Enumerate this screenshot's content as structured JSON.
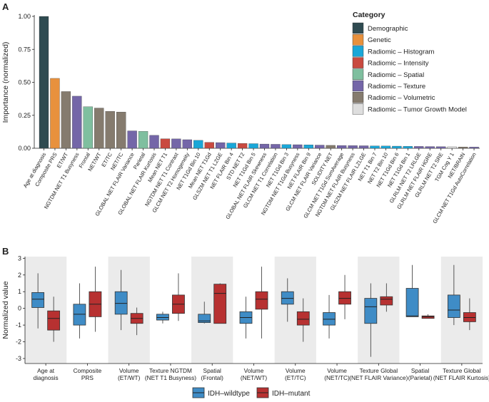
{
  "panel_labels": {
    "a": "A",
    "b": "B"
  },
  "colors": {
    "demographic": "#2f4b51",
    "genetic": "#e8913d",
    "histogram": "#1aa7d8",
    "intensity": "#c94a40",
    "spatial": "#7fbf9f",
    "texture": "#7466a8",
    "volumetric": "#857b6e",
    "growth": "#dedede",
    "wildtype": "#3f8cc6",
    "mutant": "#b73131",
    "band": "#ebebeb"
  },
  "chart_data": [
    {
      "type": "bar",
      "ylabel": "Importance (normalized)",
      "ylim": [
        0,
        1.0
      ],
      "yticks": [
        "0.00",
        "0.25",
        "0.50",
        "0.75",
        "1.00"
      ],
      "legend": {
        "title": "Category",
        "position": "top-right",
        "items": [
          {
            "label": "Demographic",
            "color_key": "demographic"
          },
          {
            "label": "Genetic",
            "color_key": "genetic"
          },
          {
            "label": "Radiomic – Histogram",
            "color_key": "histogram"
          },
          {
            "label": "Radiomic – Intensity",
            "color_key": "intensity"
          },
          {
            "label": "Radiomic – Spatial",
            "color_key": "spatial"
          },
          {
            "label": "Radiomic – Texture",
            "color_key": "texture"
          },
          {
            "label": "Radiomic – Volumetric",
            "color_key": "volumetric"
          },
          {
            "label": "Radiomic – Tumor Growth Model",
            "color_key": "growth"
          }
        ]
      },
      "bars": [
        {
          "label": "Age at diagnosis",
          "value": 1.0,
          "cat": "demographic"
        },
        {
          "label": "Composite PRS",
          "value": 0.53,
          "cat": "genetic"
        },
        {
          "label": "ET/WT",
          "value": 0.43,
          "cat": "volumetric"
        },
        {
          "label": "NGTDM NET T1 Busyness",
          "value": 0.395,
          "cat": "texture"
        },
        {
          "label": "Frontal",
          "value": 0.315,
          "cat": "spatial"
        },
        {
          "label": "NET/WT",
          "value": 0.305,
          "cat": "volumetric"
        },
        {
          "label": "ET/TC",
          "value": 0.28,
          "cat": "volumetric"
        },
        {
          "label": "NET/TC",
          "value": 0.275,
          "cat": "volumetric"
        },
        {
          "label": "GLOBAL NET FLAIR Variance",
          "value": 0.132,
          "cat": "texture"
        },
        {
          "label": "Parietal",
          "value": 0.128,
          "cat": "spatial"
        },
        {
          "label": "GLOBAL NET FLAIR Kurtosis",
          "value": 0.098,
          "cat": "texture"
        },
        {
          "label": "Mean NET T1",
          "value": 0.072,
          "cat": "intensity"
        },
        {
          "label": "NGTDM NET T1 Contrast",
          "value": 0.071,
          "cat": "texture"
        },
        {
          "label": "GLCM NET T2 Homogeneity",
          "value": 0.065,
          "cat": "texture"
        },
        {
          "label": "NET T1Gd Bin 10",
          "value": 0.06,
          "cat": "histogram"
        },
        {
          "label": "Mean NET T1Gd",
          "value": 0.045,
          "cat": "intensity"
        },
        {
          "label": "GLSZM NET T1 LZGE",
          "value": 0.043,
          "cat": "texture"
        },
        {
          "label": "NET FLAIR Bin 4",
          "value": 0.04,
          "cat": "histogram"
        },
        {
          "label": "STD NET T2",
          "value": 0.037,
          "cat": "intensity"
        },
        {
          "label": "NET T1Gd Bin 5",
          "value": 0.035,
          "cat": "histogram"
        },
        {
          "label": "GLOBAL NET FLAIR Skewness",
          "value": 0.032,
          "cat": "texture"
        },
        {
          "label": "GLCM NET T1 Correlation",
          "value": 0.03,
          "cat": "texture"
        },
        {
          "label": "NET T1Gd Bin 3",
          "value": 0.028,
          "cat": "histogram"
        },
        {
          "label": "NGTDM NET T1Gd Busyness",
          "value": 0.027,
          "cat": "texture"
        },
        {
          "label": "NET FLAIR Bin 9",
          "value": 0.026,
          "cat": "histogram"
        },
        {
          "label": "GLCM NET FLAIR Variance",
          "value": 0.024,
          "cat": "texture"
        },
        {
          "label": "SOLIDITY NET",
          "value": 0.022,
          "cat": "volumetric"
        },
        {
          "label": "GLCM NET T1Gd SumAverage",
          "value": 0.021,
          "cat": "texture"
        },
        {
          "label": "NGTDM NET FLAIR Busyness",
          "value": 0.02,
          "cat": "texture"
        },
        {
          "label": "GLSZM NET FLAIR LZLGE",
          "value": 0.019,
          "cat": "texture"
        },
        {
          "label": "NET T1 Bin 7",
          "value": 0.018,
          "cat": "histogram"
        },
        {
          "label": "NET T2 Bin 10",
          "value": 0.017,
          "cat": "histogram"
        },
        {
          "label": "NET T1Gd Bin 6",
          "value": 0.016,
          "cat": "histogram"
        },
        {
          "label": "NET T1Gd Bin 1",
          "value": 0.015,
          "cat": "histogram"
        },
        {
          "label": "GLRLM NET T2 LRLGE",
          "value": 0.014,
          "cat": "texture"
        },
        {
          "label": "GLRLM NET FLAIR HGRE",
          "value": 0.013,
          "cat": "texture"
        },
        {
          "label": "GLRLM NET T2 SRE",
          "value": 0.012,
          "cat": "texture"
        },
        {
          "label": "TGM Cog Y 1",
          "value": 0.011,
          "cat": "growth"
        },
        {
          "label": "NET/BRAIN",
          "value": 0.01,
          "cat": "volumetric"
        },
        {
          "label": "GLCM NET T1Gd AutoCorrelation",
          "value": 0.009,
          "cat": "texture"
        }
      ]
    },
    {
      "type": "box",
      "ylabel": "Normalized value",
      "ylim": [
        -3.3,
        3.1
      ],
      "yticks": [
        -3,
        -2,
        -1,
        0,
        1,
        2,
        3
      ],
      "legend": {
        "position": "bottom",
        "items": [
          {
            "label": "IDH–wildtype",
            "color_key": "wildtype"
          },
          {
            "label": "IDH–mutant",
            "color_key": "mutant"
          }
        ]
      },
      "groups": [
        {
          "label1": "Age at",
          "label2": "diagnosis",
          "wt": {
            "min": -1.2,
            "q1": 0.05,
            "med": 0.55,
            "q3": 0.95,
            "max": 2.1
          },
          "mu": {
            "min": -2.0,
            "q1": -1.3,
            "med": -0.6,
            "q3": -0.15,
            "max": 0.7
          }
        },
        {
          "label1": "Composite",
          "label2": "PRS",
          "wt": {
            "min": -1.8,
            "q1": -1.0,
            "med": -0.35,
            "q3": 0.25,
            "max": 1.5
          },
          "mu": {
            "min": -1.4,
            "q1": -0.5,
            "med": 0.25,
            "q3": 1.0,
            "max": 2.5
          }
        },
        {
          "label1": "Volume",
          "label2": "(ET/WT)",
          "wt": {
            "min": -1.3,
            "q1": -0.35,
            "med": 0.3,
            "q3": 1.0,
            "max": 2.3
          },
          "mu": {
            "min": -1.6,
            "q1": -0.9,
            "med": -0.6,
            "q3": -0.3,
            "max": 0.05
          }
        },
        {
          "label1": "Texture NGTDM",
          "label2": "(NET T1 Busyness)",
          "wt": {
            "min": -0.9,
            "q1": -0.7,
            "med": -0.55,
            "q3": -0.35,
            "max": -0.2
          },
          "mu": {
            "min": -0.75,
            "q1": -0.3,
            "med": 0.25,
            "q3": 0.8,
            "max": 2.1
          }
        },
        {
          "label1": "Spatial",
          "label2": "(Frontal)",
          "wt": {
            "min": -0.9,
            "q1": -0.85,
            "med": -0.75,
            "q3": -0.35,
            "max": 0.4
          },
          "mu": {
            "min": -0.9,
            "q1": -0.9,
            "med": 0.9,
            "q3": 1.45,
            "max": 1.5
          }
        },
        {
          "label1": "Volume",
          "label2": "(NET/WT)",
          "wt": {
            "min": -1.8,
            "q1": -0.9,
            "med": -0.55,
            "q3": -0.2,
            "max": 0.7
          },
          "mu": {
            "min": -1.8,
            "q1": -0.05,
            "med": 0.55,
            "q3": 1.0,
            "max": 2.5
          }
        },
        {
          "label1": "Volume",
          "label2": "(ET/TC)",
          "wt": {
            "min": -0.8,
            "q1": 0.25,
            "med": 0.6,
            "q3": 1.0,
            "max": 1.8
          },
          "mu": {
            "min": -2.0,
            "q1": -1.0,
            "med": -0.65,
            "q3": -0.2,
            "max": 0.6
          }
        },
        {
          "label1": "Volume",
          "label2": "(NET/TC)",
          "wt": {
            "min": -1.8,
            "q1": -1.0,
            "med": -0.65,
            "q3": -0.25,
            "max": 0.8
          },
          "mu": {
            "min": -0.65,
            "q1": 0.25,
            "med": 0.6,
            "q3": 1.0,
            "max": 2.0
          }
        },
        {
          "label1": "Texture Global",
          "label2": "(NET FLAIR Variance)",
          "wt": {
            "min": -2.9,
            "q1": -0.9,
            "med": 0.1,
            "q3": 0.6,
            "max": 1.5
          },
          "mu": {
            "min": -0.2,
            "q1": 0.2,
            "med": 0.55,
            "q3": 0.7,
            "max": 1.5
          }
        },
        {
          "label1": "Spatial",
          "label2": "(Parietal)",
          "wt": {
            "min": -0.5,
            "q1": -0.5,
            "med": -0.45,
            "q3": 1.2,
            "max": 2.6
          },
          "mu": {
            "min": -0.6,
            "q1": -0.6,
            "med": -0.5,
            "q3": -0.45,
            "max": -0.35
          }
        },
        {
          "label1": "Texture Global",
          "label2": "(NET FLAIR Kurtosis)",
          "wt": {
            "min": -1.0,
            "q1": -0.55,
            "med": -0.1,
            "q3": 0.8,
            "max": 2.6
          },
          "mu": {
            "min": -1.3,
            "q1": -0.8,
            "med": -0.55,
            "q3": -0.25,
            "max": 0.6
          }
        }
      ]
    }
  ]
}
